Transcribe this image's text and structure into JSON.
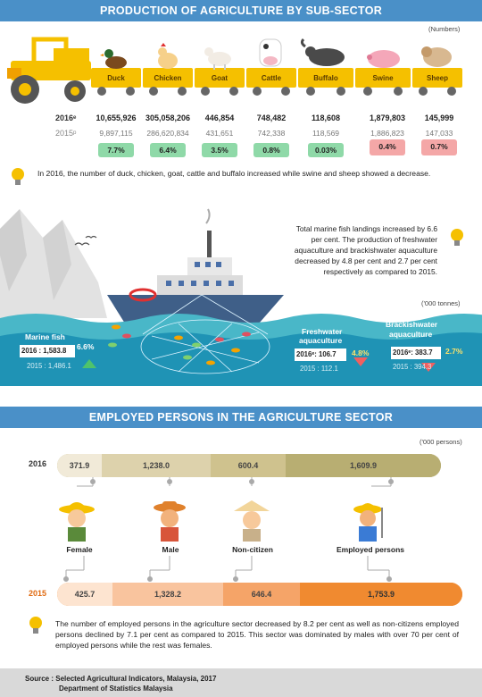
{
  "sections": {
    "production_title": "PRODUCTION OF AGRICULTURE BY SUB-SECTOR",
    "production_unit": "(Numbers)",
    "employment_title": "EMPLOYED PERSONS IN THE AGRICULTURE SECTOR",
    "employment_unit": "('000 persons)",
    "fisheries_unit": "('000 tonnes)"
  },
  "livestock": {
    "year_2016": "2016ᵉ",
    "year_2015": "2015ᵖ",
    "items": [
      {
        "label": "Duck",
        "v2016": "10,655,926",
        "v2015": "9,897,115",
        "pct": "7.7%",
        "trend": "up"
      },
      {
        "label": "Chicken",
        "v2016": "305,058,206",
        "v2015": "286,620,834",
        "pct": "6.4%",
        "trend": "up"
      },
      {
        "label": "Goat",
        "v2016": "446,854",
        "v2015": "431,651",
        "pct": "3.5%",
        "trend": "up"
      },
      {
        "label": "Cattle",
        "v2016": "748,482",
        "v2015": "742,338",
        "pct": "0.8%",
        "trend": "up"
      },
      {
        "label": "Buffalo",
        "v2016": "118,608",
        "v2015": "118,569",
        "pct": "0.03%",
        "trend": "up"
      },
      {
        "label": "Swine",
        "v2016": "1,879,803",
        "v2015": "1,886,823",
        "pct": "0.4%",
        "trend": "down"
      },
      {
        "label": "Sheep",
        "v2016": "145,999",
        "v2015": "147,033",
        "pct": "0.7%",
        "trend": "down"
      }
    ],
    "note": "In 2016, the number of duck, chicken, goat, cattle and buffalo increased while swine and sheep showed a decrease."
  },
  "fisheries": {
    "note": "Total marine fish landings increased by 6.6 per cent. The production of freshwater aquaculture and brackishwater aquaculture decreased by 4.8 per cent and 2.7 per cent respectively as compared to 2015.",
    "marine": {
      "label": "Marine fish",
      "v2016": "2016 : 1,583.8",
      "v2015": "2015 : 1,486.1",
      "pct": "6.6%"
    },
    "freshwater": {
      "label_1": "Freshwater",
      "label_2": "aquaculture",
      "v2016": "2016ᵉ: 106.7",
      "v2015": "2015 : 112.1",
      "pct": "4.8%"
    },
    "brackish": {
      "label_1": "Brackishwater",
      "label_2": "aquaculture",
      "v2016": "2016ᵉ: 383.7",
      "v2015": "2015 : 394.3",
      "pct": "2.7%"
    }
  },
  "employment": {
    "year_2016": "2016",
    "year_2015": "2015",
    "categories": [
      "Female",
      "Male",
      "Non-citizen",
      "Employed persons"
    ],
    "values_2016": [
      "371.9",
      "1,238.0",
      "600.4",
      "1,609.9"
    ],
    "values_2015": [
      "425.7",
      "1,328.2",
      "646.4",
      "1,753.9"
    ],
    "note": "The number of employed persons in the agriculture sector decreased by 8.2 per cent as well as non-citizens employed persons declined by 7.1 per cent as compared to 2015. This sector was dominated by males with over 70 per cent of employed persons while the rest was females."
  },
  "source": {
    "line1": "Source : Selected Agricultural Indicators, Malaysia, 2017",
    "line2": "Department of Statistics Malaysia"
  }
}
